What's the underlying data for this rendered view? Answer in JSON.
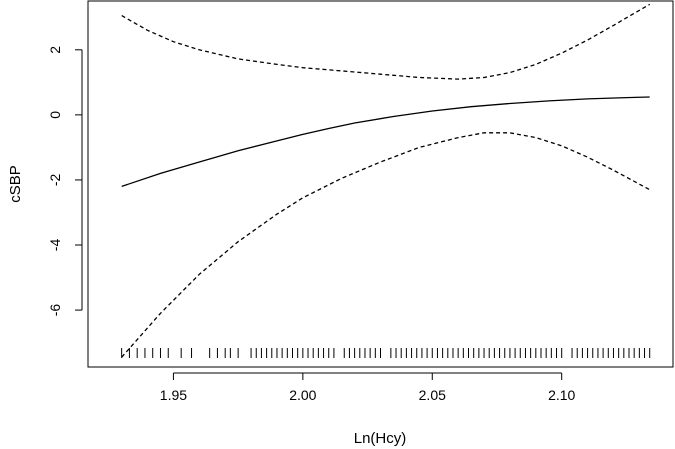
{
  "chart_data": {
    "type": "line",
    "title": "",
    "xlabel": "Ln(Hcy)",
    "ylabel": "cSBP",
    "xlim": [
      1.917,
      2.143
    ],
    "ylim": [
      -7.75,
      3.5
    ],
    "x_ticks": [
      {
        "value": 1.95,
        "label": "1.95"
      },
      {
        "value": 2.0,
        "label": "2.00"
      },
      {
        "value": 2.05,
        "label": "2.05"
      },
      {
        "value": 2.1,
        "label": "2.10"
      }
    ],
    "y_ticks": [
      {
        "value": 2,
        "label": "2"
      },
      {
        "value": 0,
        "label": "0"
      },
      {
        "value": -2,
        "label": "-2"
      },
      {
        "value": -4,
        "label": "-4"
      },
      {
        "value": -6,
        "label": "-6"
      }
    ],
    "grid": false,
    "series": [
      {
        "style": "solid",
        "x": [
          1.93,
          1.945,
          1.96,
          1.975,
          1.99,
          2.0,
          2.01,
          2.02,
          2.035,
          2.05,
          2.065,
          2.08,
          2.095,
          2.11,
          2.125,
          2.134
        ],
        "y": [
          -2.2,
          -1.8,
          -1.45,
          -1.1,
          -0.8,
          -0.6,
          -0.42,
          -0.25,
          -0.05,
          0.12,
          0.25,
          0.35,
          0.43,
          0.49,
          0.53,
          0.55
        ]
      },
      {
        "style": "dashed",
        "x": [
          1.93,
          1.94,
          1.95,
          1.96,
          1.975,
          1.99,
          2.0,
          2.015,
          2.03,
          2.045,
          2.06,
          2.07,
          2.08,
          2.09,
          2.1,
          2.11,
          2.12,
          2.134
        ],
        "y": [
          3.05,
          2.6,
          2.25,
          2.0,
          1.72,
          1.55,
          1.45,
          1.35,
          1.25,
          1.15,
          1.1,
          1.15,
          1.3,
          1.55,
          1.9,
          2.3,
          2.75,
          3.4
        ]
      },
      {
        "style": "dashed",
        "x": [
          1.93,
          1.945,
          1.96,
          1.975,
          1.99,
          2.0,
          2.015,
          2.03,
          2.045,
          2.06,
          2.07,
          2.08,
          2.09,
          2.1,
          2.11,
          2.12,
          2.134
        ],
        "y": [
          -7.45,
          -6.1,
          -4.9,
          -3.9,
          -3.05,
          -2.55,
          -1.95,
          -1.45,
          -1.0,
          -0.7,
          -0.55,
          -0.55,
          -0.7,
          -0.95,
          -1.3,
          -1.7,
          -2.3
        ]
      }
    ],
    "rug_x": [
      1.93,
      1.933,
      1.936,
      1.939,
      1.942,
      1.945,
      1.948,
      1.953,
      1.957,
      1.964,
      1.967,
      1.97,
      1.972,
      1.975,
      1.98,
      1.982,
      1.984,
      1.986,
      1.988,
      1.99,
      1.992,
      1.994,
      1.996,
      1.998,
      2.0,
      2.002,
      2.004,
      2.006,
      2.008,
      2.01,
      2.012,
      2.016,
      2.018,
      2.02,
      2.022,
      2.024,
      2.026,
      2.028,
      2.03,
      2.034,
      2.036,
      2.038,
      2.04,
      2.042,
      2.044,
      2.046,
      2.048,
      2.05,
      2.052,
      2.054,
      2.056,
      2.058,
      2.06,
      2.062,
      2.064,
      2.066,
      2.068,
      2.07,
      2.072,
      2.074,
      2.076,
      2.078,
      2.08,
      2.082,
      2.084,
      2.086,
      2.088,
      2.09,
      2.092,
      2.094,
      2.096,
      2.098,
      2.1,
      2.104,
      2.106,
      2.108,
      2.11,
      2.112,
      2.114,
      2.116,
      2.118,
      2.12,
      2.122,
      2.124,
      2.126,
      2.128,
      2.13,
      2.132,
      2.134
    ]
  }
}
